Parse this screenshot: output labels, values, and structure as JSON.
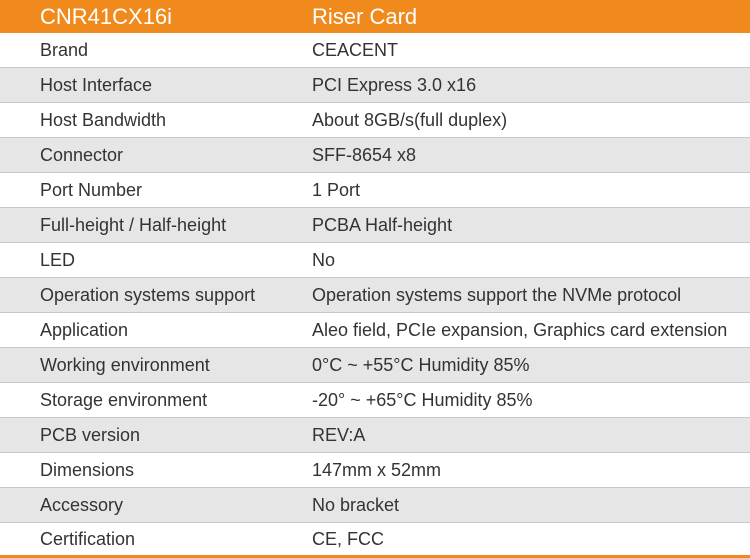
{
  "header": {
    "model": "CNR41CX16i",
    "product": "Riser Card"
  },
  "specs": [
    {
      "label": "Brand",
      "value": "CEACENT"
    },
    {
      "label": "Host Interface",
      "value": "PCI Express 3.0 x16"
    },
    {
      "label": "Host Bandwidth",
      "value": "About 8GB/s(full duplex)"
    },
    {
      "label": "Connector",
      "value": "SFF-8654 x8"
    },
    {
      "label": "Port Number",
      "value": "1 Port"
    },
    {
      "label": "Full-height / Half-height",
      "value": "PCBA Half-height"
    },
    {
      "label": "LED",
      "value": "No"
    },
    {
      "label": "Operation systems support",
      "value": "Operation systems support the NVMe protocol"
    },
    {
      "label": "Application",
      "value": "Aleo field, PCIe expansion, Graphics card extension"
    },
    {
      "label": "Working environment",
      "value": "0°C ~ +55°C  Humidity 85%"
    },
    {
      "label": "Storage environment",
      "value": "-20° ~ +65°C  Humidity 85%"
    },
    {
      "label": "PCB version",
      "value": "REV:A"
    },
    {
      "label": "Dimensions",
      "value": "147mm x 52mm"
    },
    {
      "label": "Accessory",
      "value": "No bracket"
    },
    {
      "label": "Certification",
      "value": "CE, FCC"
    }
  ],
  "colors": {
    "header_bg": "#f08a1c",
    "header_text": "#ffffff",
    "row_alt_bg": "#e6e6e6",
    "text": "#333333"
  }
}
